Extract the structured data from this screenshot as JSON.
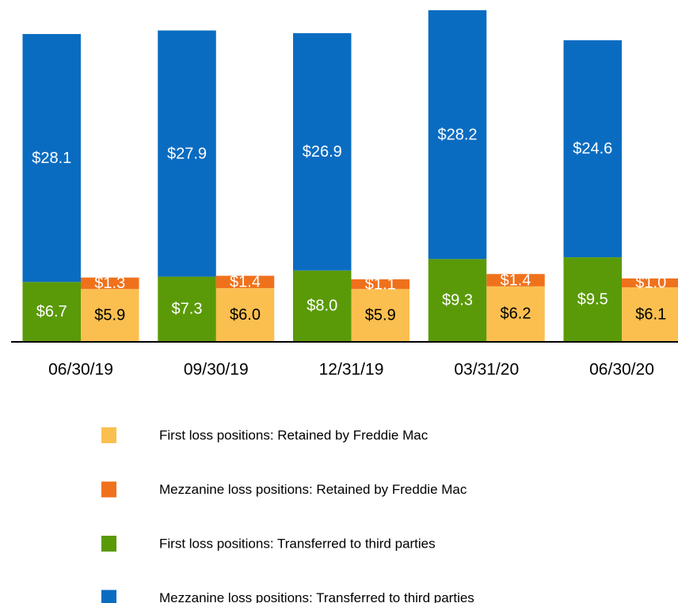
{
  "chart_data": {
    "type": "stacked-grouped-bar",
    "categories": [
      "06/30/19",
      "09/30/19",
      "12/31/19",
      "03/31/20",
      "06/30/20"
    ],
    "series": [
      {
        "name": "First loss positions: Retained by Freddie Mac",
        "color": "#fbbf4f",
        "stack": "retained",
        "label_color": "#000000",
        "values": [
          5.9,
          6.0,
          5.9,
          6.2,
          6.1
        ],
        "value_labels": [
          "$5.9",
          "$6.0",
          "$5.9",
          "$6.2",
          "$6.1"
        ]
      },
      {
        "name": "Mezzanine loss positions: Retained by Freddie Mac",
        "color": "#f0711c",
        "stack": "retained",
        "label_color": "#ffffff",
        "values": [
          1.3,
          1.4,
          1.1,
          1.4,
          1.0
        ],
        "value_labels": [
          "$1.3",
          "$1.4",
          "$1.1",
          "$1.4",
          "$1.0"
        ]
      },
      {
        "name": "First loss positions: Transferred to third parties",
        "color": "#5a9a08",
        "stack": "transferred",
        "label_color": "#ffffff",
        "values": [
          6.7,
          7.3,
          8.0,
          9.3,
          9.5
        ],
        "value_labels": [
          "$6.7",
          "$7.3",
          "$8.0",
          "$9.3",
          "$9.5"
        ]
      },
      {
        "name": "Mezzanine loss positions: Transferred to third parties",
        "color": "#0a6cc1",
        "stack": "transferred",
        "label_color": "#ffffff",
        "values": [
          28.1,
          27.9,
          26.9,
          28.2,
          24.6
        ],
        "value_labels": [
          "$28.1",
          "$27.9",
          "$26.9",
          "$28.2",
          "$24.6"
        ]
      }
    ]
  }
}
